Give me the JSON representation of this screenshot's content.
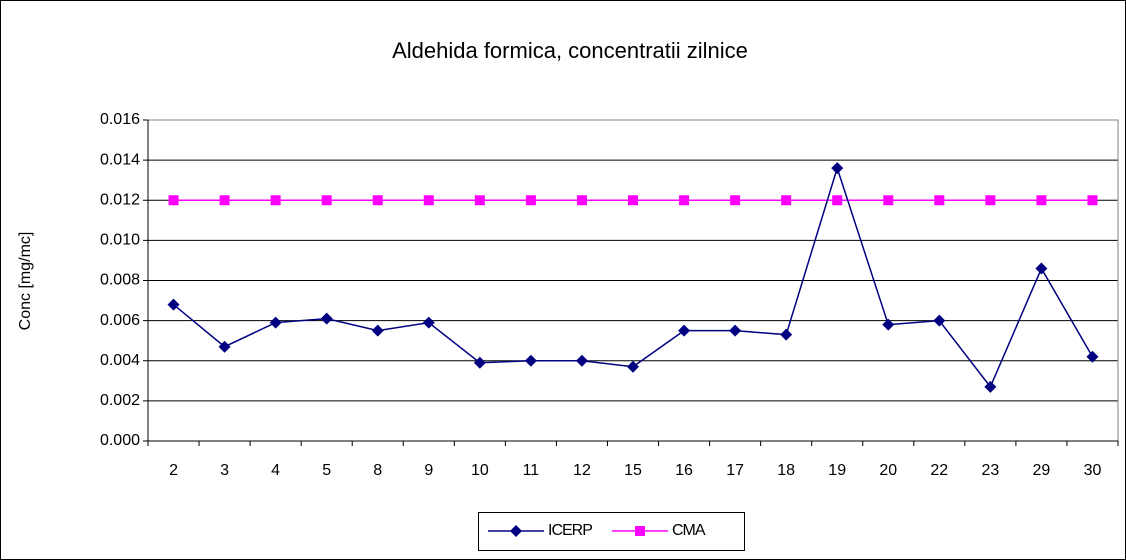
{
  "chart_data": {
    "type": "line",
    "title": "Aldehida formica, concentratii zilnice",
    "y_label": "Conc [mg/mc]",
    "categories": [
      "2",
      "3",
      "4",
      "5",
      "8",
      "9",
      "10",
      "11",
      "12",
      "15",
      "16",
      "17",
      "18",
      "19",
      "20",
      "22",
      "23",
      "29",
      "30"
    ],
    "series": [
      {
        "name": "ICERP",
        "color": "#000080",
        "marker": "diamond",
        "values": [
          0.0068,
          0.0047,
          0.0059,
          0.0061,
          0.0055,
          0.0059,
          0.0039,
          0.004,
          0.004,
          0.0037,
          0.0055,
          0.0055,
          0.0053,
          0.0136,
          0.0058,
          0.006,
          0.0027,
          0.0086,
          0.0042
        ]
      },
      {
        "name": "CMA",
        "color": "#ff00ff",
        "marker": "square",
        "values": [
          0.012,
          0.012,
          0.012,
          0.012,
          0.012,
          0.012,
          0.012,
          0.012,
          0.012,
          0.012,
          0.012,
          0.012,
          0.012,
          0.012,
          0.012,
          0.012,
          0.012,
          0.012,
          0.012
        ]
      }
    ],
    "ylim": [
      0,
      0.016
    ],
    "yticks": [
      {
        "value": 0,
        "label": "0.000"
      },
      0.002,
      0.004,
      0.006,
      0.008,
      {
        "value": 0.01,
        "label": "0.010"
      },
      0.012,
      0.014,
      0.016
    ],
    "grid": true,
    "legend": "bottom"
  }
}
